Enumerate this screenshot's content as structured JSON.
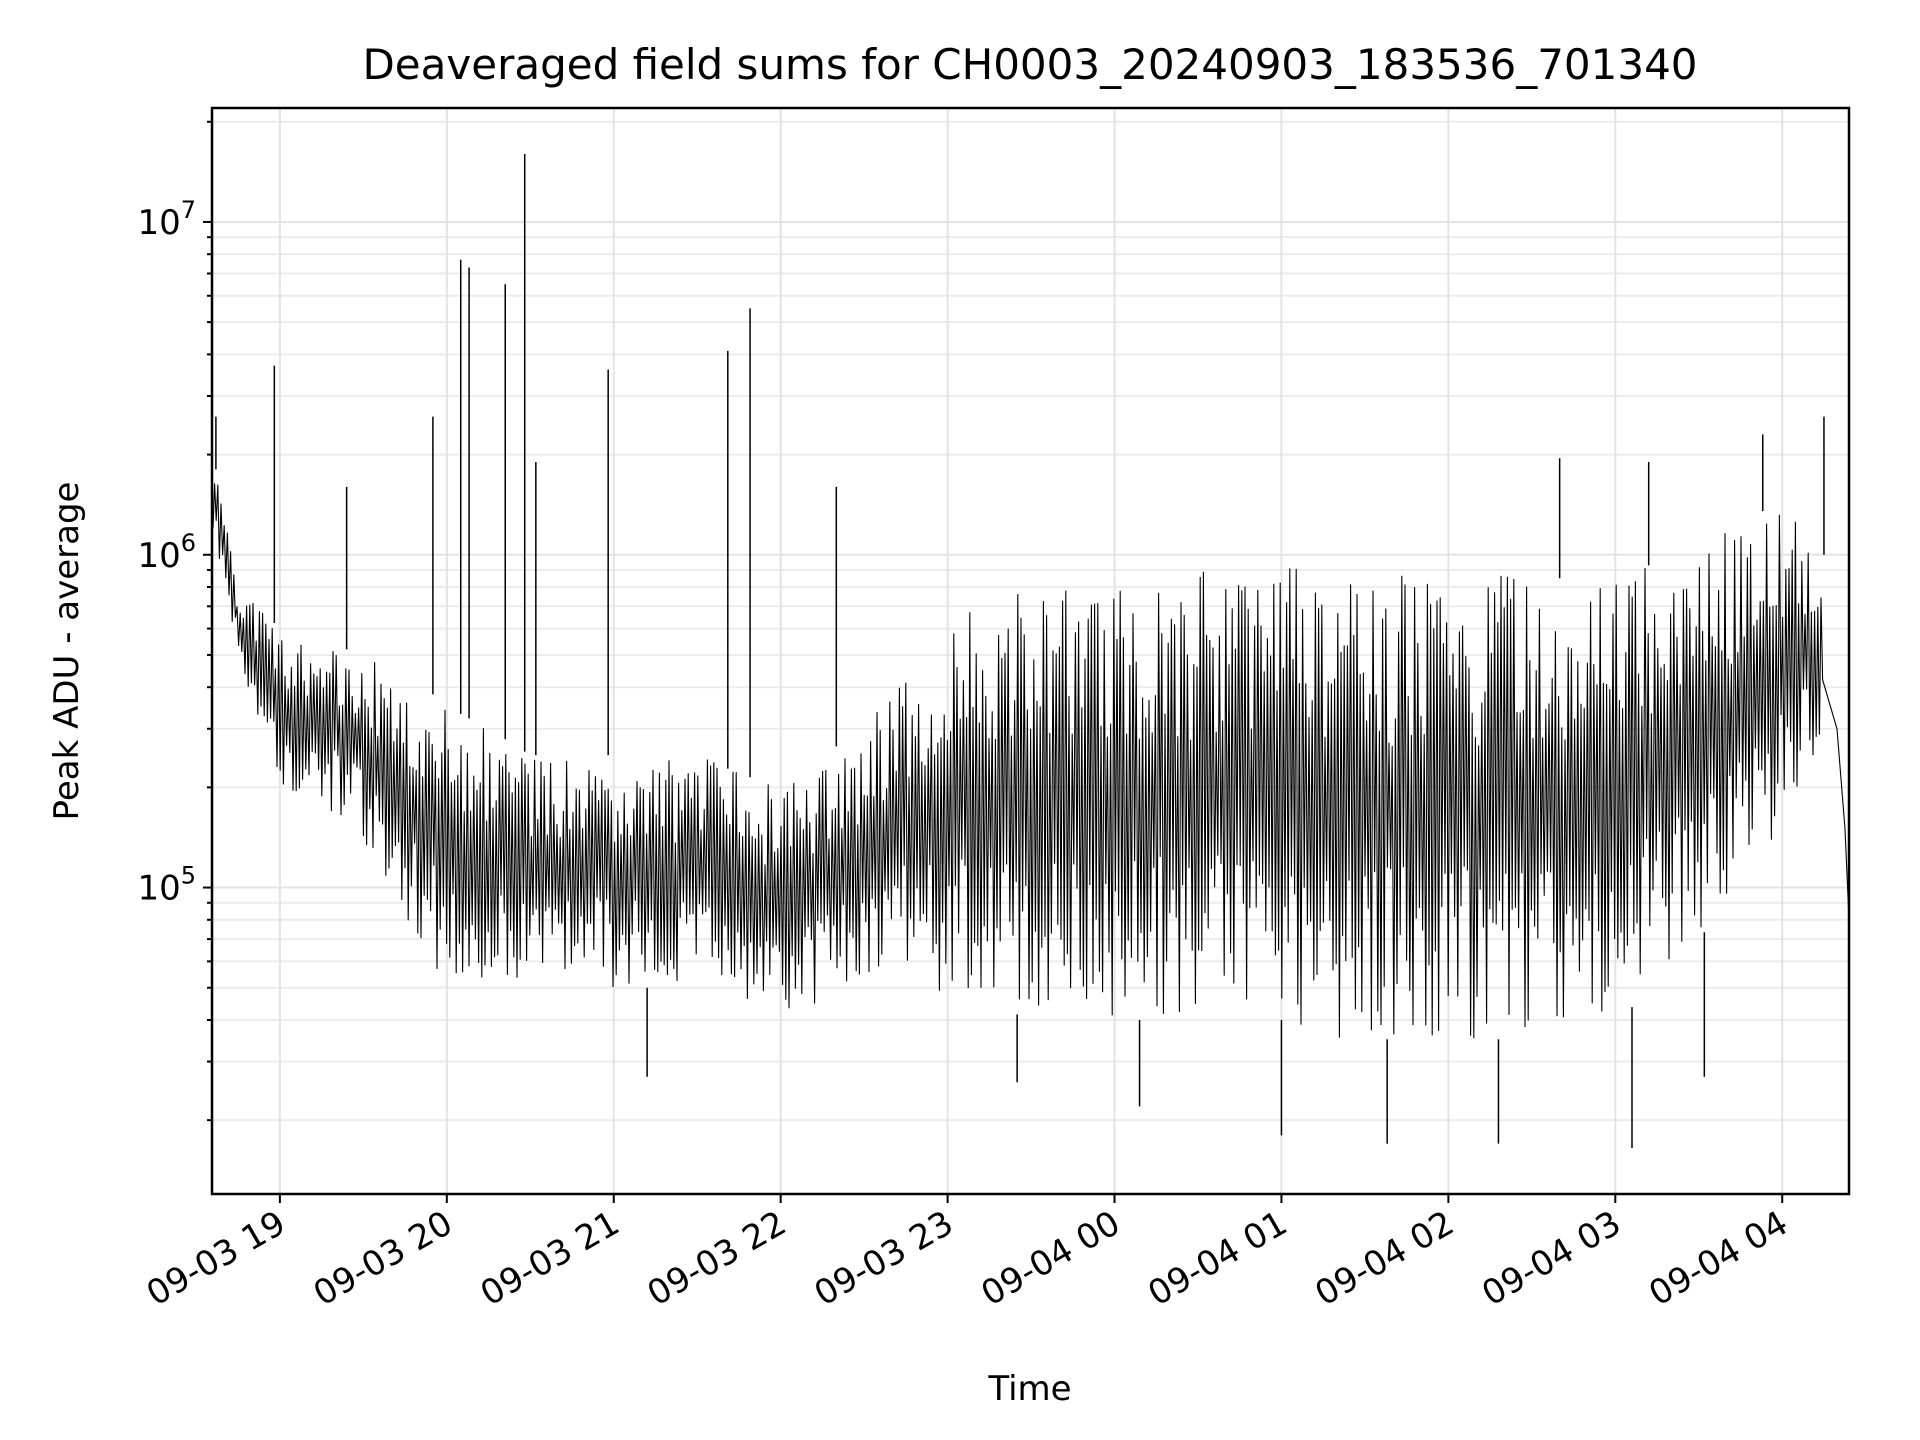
{
  "chart_data": {
    "type": "line",
    "title": "Deaveraged field sums for CH0003_20240903_183536_701340",
    "xlabel": "Time",
    "ylabel": "Peak ADU - average",
    "yscale": "log",
    "ylim": [
      12000,
      22000000
    ],
    "xlim": [
      "2024-09-03 18:35:36",
      "2024-09-04 04:24:00"
    ],
    "grid": true,
    "line_color": "#000000",
    "x_ticks": [
      {
        "value": "2024-09-03 19:00",
        "label": "09-03 19"
      },
      {
        "value": "2024-09-03 20:00",
        "label": "09-03 20"
      },
      {
        "value": "2024-09-03 21:00",
        "label": "09-03 21"
      },
      {
        "value": "2024-09-03 22:00",
        "label": "09-03 22"
      },
      {
        "value": "2024-09-03 23:00",
        "label": "09-03 23"
      },
      {
        "value": "2024-09-04 00:00",
        "label": "09-04 00"
      },
      {
        "value": "2024-09-04 01:00",
        "label": "09-04 01"
      },
      {
        "value": "2024-09-04 02:00",
        "label": "09-04 02"
      },
      {
        "value": "2024-09-04 03:00",
        "label": "09-04 03"
      },
      {
        "value": "2024-09-04 04:00",
        "label": "09-04 04"
      }
    ],
    "y_ticks": [
      {
        "value": 100000,
        "mantissa": "10",
        "exponent": "5"
      },
      {
        "value": 1000000,
        "mantissa": "10",
        "exponent": "6"
      },
      {
        "value": 10000000,
        "mantissa": "10",
        "exponent": "7"
      }
    ],
    "series": [
      {
        "envelope": {
          "x": [
            "2024-09-03 18:36",
            "2024-09-03 18:45",
            "2024-09-03 19:00",
            "2024-09-03 19:15",
            "2024-09-03 19:30",
            "2024-09-03 19:45",
            "2024-09-03 20:00",
            "2024-09-03 20:15",
            "2024-09-03 20:30",
            "2024-09-03 20:45",
            "2024-09-03 21:00",
            "2024-09-03 21:15",
            "2024-09-03 21:30",
            "2024-09-03 21:45",
            "2024-09-03 22:00",
            "2024-09-03 22:15",
            "2024-09-03 22:30",
            "2024-09-03 22:45",
            "2024-09-03 23:00",
            "2024-09-03 23:15",
            "2024-09-03 23:30",
            "2024-09-03 23:45",
            "2024-09-04 00:00",
            "2024-09-04 00:15",
            "2024-09-04 00:30",
            "2024-09-04 00:45",
            "2024-09-04 01:00",
            "2024-09-04 01:15",
            "2024-09-04 01:30",
            "2024-09-04 01:45",
            "2024-09-04 02:00",
            "2024-09-04 02:15",
            "2024-09-04 02:30",
            "2024-09-04 02:45",
            "2024-09-04 03:00",
            "2024-09-04 03:15",
            "2024-09-04 03:30",
            "2024-09-04 03:45",
            "2024-09-04 04:00",
            "2024-09-04 04:15"
          ],
          "low": [
            1200000,
            500000,
            200000,
            180000,
            140000,
            80000,
            50000,
            50000,
            55000,
            55000,
            50000,
            50000,
            50000,
            45000,
            40000,
            45000,
            50000,
            50000,
            45000,
            45000,
            40000,
            40000,
            40000,
            40000,
            40000,
            35000,
            40000,
            35000,
            35000,
            35000,
            35000,
            35000,
            35000,
            40000,
            40000,
            50000,
            70000,
            100000,
            150000,
            300000
          ],
          "high": [
            2000000,
            800000,
            600000,
            550000,
            500000,
            450000,
            350000,
            300000,
            250000,
            250000,
            250000,
            250000,
            250000,
            220000,
            200000,
            250000,
            300000,
            500000,
            600000,
            750000,
            800000,
            800000,
            800000,
            850000,
            900000,
            950000,
            950000,
            950000,
            950000,
            900000,
            850000,
            900000,
            850000,
            850000,
            850000,
            950000,
            1000000,
            1300000,
            1400000,
            1000000
          ]
        }
      }
    ],
    "spikes": [
      {
        "x": "2024-09-03 18:37",
        "y": 2600000
      },
      {
        "x": "2024-09-03 18:58",
        "y": 3700000
      },
      {
        "x": "2024-09-03 19:24",
        "y": 1600000
      },
      {
        "x": "2024-09-03 19:55",
        "y": 2600000
      },
      {
        "x": "2024-09-03 20:05",
        "y": 7700000
      },
      {
        "x": "2024-09-03 20:08",
        "y": 7300000
      },
      {
        "x": "2024-09-03 20:21",
        "y": 6500000
      },
      {
        "x": "2024-09-03 20:28",
        "y": 16000000
      },
      {
        "x": "2024-09-03 20:32",
        "y": 1900000
      },
      {
        "x": "2024-09-03 20:58",
        "y": 3600000
      },
      {
        "x": "2024-09-03 21:41",
        "y": 4100000
      },
      {
        "x": "2024-09-03 21:49",
        "y": 5500000
      },
      {
        "x": "2024-09-03 22:20",
        "y": 1600000
      },
      {
        "x": "2024-09-04 02:40",
        "y": 1950000
      },
      {
        "x": "2024-09-04 03:12",
        "y": 1900000
      },
      {
        "x": "2024-09-04 03:53",
        "y": 2300000
      },
      {
        "x": "2024-09-04 04:15",
        "y": 2600000
      }
    ],
    "dips": [
      {
        "x": "2024-09-03 21:12",
        "y": 27000
      },
      {
        "x": "2024-09-03 23:25",
        "y": 26000
      },
      {
        "x": "2024-09-04 00:09",
        "y": 22000
      },
      {
        "x": "2024-09-04 01:00",
        "y": 18000
      },
      {
        "x": "2024-09-04 01:38",
        "y": 17000
      },
      {
        "x": "2024-09-04 02:18",
        "y": 17000
      },
      {
        "x": "2024-09-04 03:06",
        "y": 16500
      },
      {
        "x": "2024-09-04 03:32",
        "y": 27000
      }
    ]
  }
}
